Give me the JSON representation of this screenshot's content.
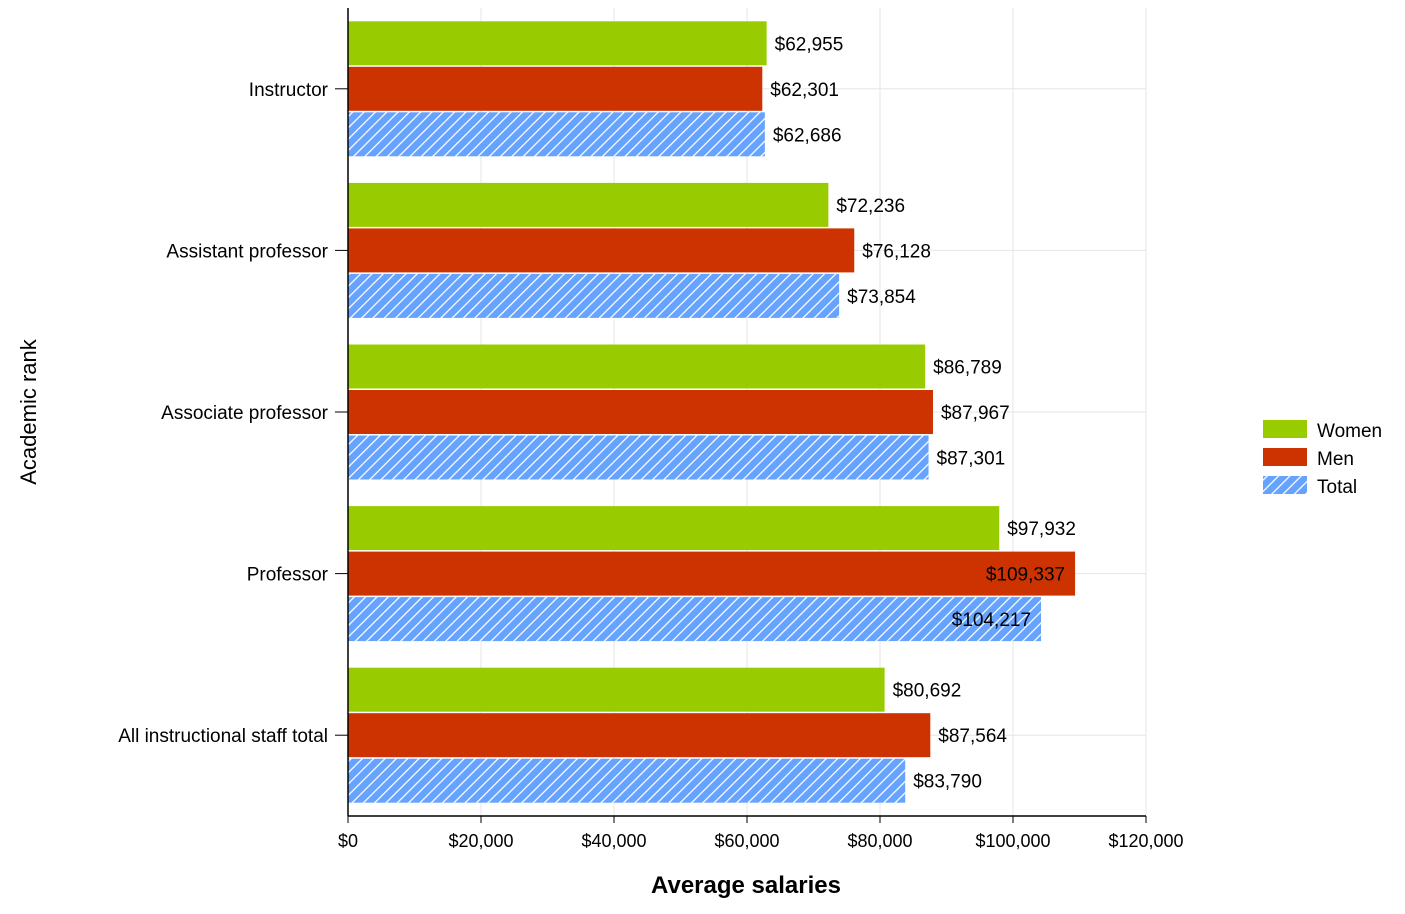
{
  "chart_data": {
    "type": "bar",
    "orientation": "horizontal",
    "categories": [
      "Instructor",
      "Assistant professor",
      "Associate professor",
      "Professor",
      "All instructional staff total"
    ],
    "series": [
      {
        "name": "Women",
        "values": [
          62955,
          72236,
          86789,
          97932,
          80692
        ],
        "color": "#99cc00",
        "pattern": "solid"
      },
      {
        "name": "Men",
        "values": [
          62301,
          76128,
          87967,
          109337,
          87564
        ],
        "color": "#cc3300",
        "pattern": "solid"
      },
      {
        "name": "Total",
        "values": [
          62686,
          73854,
          87301,
          104217,
          83790
        ],
        "color": "#66a3ff",
        "pattern": "hatched"
      }
    ],
    "value_labels": [
      [
        "$62,955",
        "$72,236",
        "$86,789",
        "$97,932",
        "$80,692"
      ],
      [
        "$62,301",
        "$76,128",
        "$87,967",
        "$109,337",
        "$87,564"
      ],
      [
        "$62,686",
        "$73,854",
        "$87,301",
        "$104,217",
        "$83,790"
      ]
    ],
    "x_ticks": [
      "$0",
      "$20,000",
      "$40,000",
      "$60,000",
      "$80,000",
      "$100,000",
      "$120,000"
    ],
    "xlim": [
      0,
      120000
    ],
    "xlabel": "Average salaries",
    "ylabel": "Academic rank",
    "grid": true,
    "legend": {
      "position": "right",
      "entries": [
        "Women",
        "Men",
        "Total"
      ]
    }
  }
}
